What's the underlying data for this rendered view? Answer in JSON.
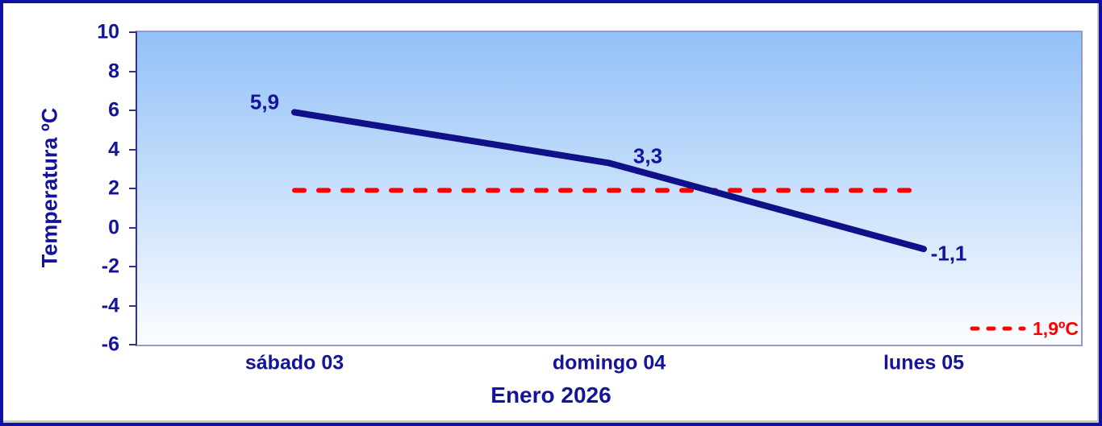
{
  "chart_data": {
    "type": "line",
    "title": "",
    "xlabel": "Enero 2026",
    "ylabel": "Temperatura ºC",
    "categories": [
      "sábado 03",
      "domingo 04",
      "lunes 05"
    ],
    "series": [
      {
        "name": "Temperatura",
        "values": [
          5.9,
          3.3,
          -1.1
        ],
        "point_labels": [
          "5,9",
          "3,3",
          "-1,1"
        ],
        "color": "#101088"
      }
    ],
    "reference_line": {
      "value": 1.9,
      "legend_label": "1,9ºC",
      "color": "#fc0000",
      "style": "dashed"
    },
    "ylim": [
      -6,
      10
    ],
    "yticks": [
      10,
      8,
      6,
      4,
      2,
      0,
      -2,
      -4,
      -6
    ],
    "grid": false,
    "legend_position": "inside-bottom-right",
    "colors": {
      "frame_border": "#1010a4",
      "axis_text": "#14149a",
      "axis_line": "#32328e",
      "plot_border": "#9898c8",
      "plot_bg_top": "#93c1f8",
      "plot_bg_bottom": "#fbfdff"
    }
  }
}
